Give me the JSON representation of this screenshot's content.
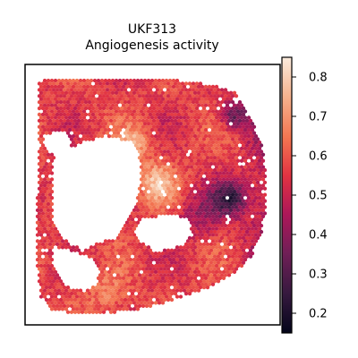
{
  "chart_data": {
    "type": "heatmap",
    "title": "UKF313",
    "subtitle": "Angiogenesis activity",
    "xlabel": "",
    "ylabel": "",
    "colormap": "rocket",
    "colorbar": {
      "range": [
        0.15,
        0.85
      ],
      "ticks": [
        0.2,
        0.3,
        0.4,
        0.5,
        0.6,
        0.7,
        0.8
      ],
      "tick_labels": [
        "0.2",
        "0.3",
        "0.4",
        "0.5",
        "0.6",
        "0.7",
        "0.8"
      ]
    },
    "axes_ticks_visible": false,
    "grid": false
  },
  "colors": {
    "frame": "#000000",
    "colormap_stops": [
      "#03051a",
      "#35193e",
      "#701f57",
      "#ad1759",
      "#e13342",
      "#f37651",
      "#f6b48f",
      "#faebdd"
    ]
  }
}
